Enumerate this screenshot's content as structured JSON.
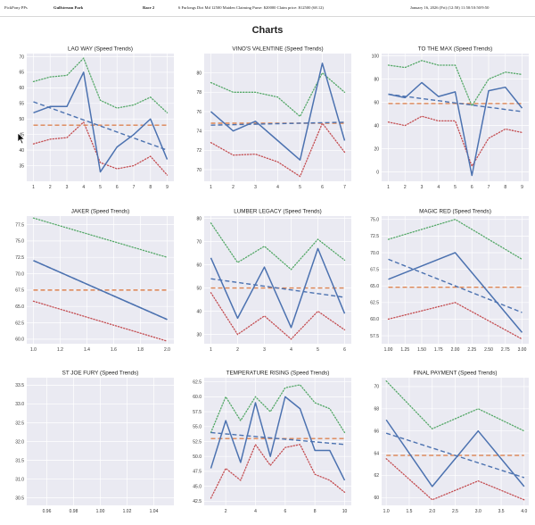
{
  "header": {
    "site": "PickPony PPs",
    "track": "Gulfstream Park",
    "race": "Race 2",
    "conditions": "6 Furlongs Dirt Md 12500 Maiden Claiming Purse: $20000 Claim price: $12500 (68.12)",
    "date": "January 16, 2026 (Fri) (12:50) 11:50/10:50/9:50"
  },
  "page_title": "Charts",
  "colors": {
    "actual": "#4c72b0",
    "trend": "#4c72b0",
    "average": "#dd8452",
    "upper": "#55a868",
    "lower": "#c44e52",
    "plot_bg": "#eaeaf2",
    "grid": "#ffffff"
  },
  "chart_data": [
    {
      "type": "line",
      "title": "LAO WAY (Speed Trends)",
      "x": [
        1,
        2,
        3,
        4,
        5,
        6,
        7,
        8,
        9
      ],
      "xticks": [
        "1",
        "2",
        "3",
        "4",
        "5",
        "6",
        "7",
        "8",
        "9"
      ],
      "xlim": [
        0.6,
        9.4
      ],
      "yticks": [
        "35",
        "40",
        "45",
        "50",
        "55",
        "60",
        "65",
        "70"
      ],
      "ylim": [
        30,
        71
      ],
      "actual": [
        52,
        54,
        54,
        65,
        33,
        41,
        45,
        50,
        37
      ],
      "trend": [
        55.5,
        40
      ],
      "average": 48,
      "upper": [
        62,
        63.5,
        64,
        69.5,
        56,
        53.5,
        54.5,
        57,
        52
      ],
      "lower": [
        42,
        43.5,
        44,
        49,
        36,
        34,
        35,
        38,
        32
      ]
    },
    {
      "type": "line",
      "title": "VINO'S VALENTINE (Speed Trends)",
      "x": [
        1,
        2,
        3,
        4,
        5,
        6,
        7
      ],
      "xticks": [
        "1",
        "2",
        "3",
        "4",
        "5",
        "6",
        "7"
      ],
      "xlim": [
        0.7,
        7.3
      ],
      "yticks": [
        "70",
        "72",
        "74",
        "76",
        "78",
        "80"
      ],
      "ylim": [
        68.8,
        82
      ],
      "actual": [
        76,
        74,
        75,
        73,
        71,
        81,
        73
      ],
      "trend": [
        74.6,
        74.9
      ],
      "average": 74.8,
      "upper": [
        79,
        78,
        78,
        77.5,
        75.5,
        80,
        78
      ],
      "lower": [
        72.8,
        71.5,
        71.6,
        70.8,
        69.3,
        74.8,
        71.8
      ]
    },
    {
      "type": "line",
      "title": "TO THE MAX (Speed Trends)",
      "x": [
        1,
        2,
        3,
        4,
        5,
        6,
        7,
        8,
        9
      ],
      "xticks": [
        "1",
        "2",
        "3",
        "4",
        "5",
        "6",
        "7",
        "8",
        "9"
      ],
      "xlim": [
        0.6,
        9.4
      ],
      "yticks": [
        "0",
        "20",
        "40",
        "60",
        "80",
        "100"
      ],
      "ylim": [
        -8,
        102
      ],
      "actual": [
        67,
        64,
        77,
        65,
        69,
        -3,
        70,
        73,
        55
      ],
      "trend": [
        67,
        52
      ],
      "average": 59,
      "upper": [
        92,
        90,
        96,
        92,
        92,
        57,
        80,
        86,
        84
      ],
      "lower": [
        43,
        40,
        48,
        44,
        44,
        5,
        29,
        37,
        34
      ]
    },
    {
      "type": "line",
      "title": "JAKER (Speed Trends)",
      "x": [
        1,
        2
      ],
      "xticks": [
        "1.0",
        "1.2",
        "1.4",
        "1.6",
        "1.8",
        "2.0"
      ],
      "xlim": [
        0.95,
        2.05
      ],
      "yticks": [
        "60.0",
        "62.5",
        "65.0",
        "67.5",
        "70.0",
        "72.5",
        "75.0",
        "77.5"
      ],
      "ylim": [
        59.3,
        78.8
      ],
      "actual": [
        72,
        63
      ],
      "trend": [
        72,
        63
      ],
      "average": 67.5,
      "upper": [
        78.5,
        72.5
      ],
      "lower": [
        65.8,
        59.7
      ]
    },
    {
      "type": "line",
      "title": "LUMBER LEGACY (Speed Trends)",
      "x": [
        1,
        2,
        3,
        4,
        5,
        6
      ],
      "xticks": [
        "1",
        "2",
        "3",
        "4",
        "5",
        "6"
      ],
      "xlim": [
        0.75,
        6.25
      ],
      "yticks": [
        "30",
        "40",
        "50",
        "60",
        "70",
        "80"
      ],
      "ylim": [
        26,
        81
      ],
      "actual": [
        63,
        37,
        59,
        33,
        67,
        39
      ],
      "trend": [
        54,
        46
      ],
      "average": 50,
      "upper": [
        78,
        61,
        68,
        58,
        71,
        62
      ],
      "lower": [
        48,
        30,
        38,
        28,
        40,
        32
      ]
    },
    {
      "type": "line",
      "title": "MAGIC RED (Speed Trends)",
      "x": [
        1,
        2,
        3
      ],
      "xticks": [
        "1.00",
        "1.25",
        "1.50",
        "1.75",
        "2.00",
        "2.25",
        "2.50",
        "2.75",
        "3.00"
      ],
      "xlim": [
        0.9,
        3.1
      ],
      "yticks": [
        "57.5",
        "60.0",
        "62.5",
        "65.0",
        "67.5",
        "70.0",
        "72.5",
        "75.0"
      ],
      "ylim": [
        56.3,
        75.5
      ],
      "actual": [
        66,
        70,
        58
      ],
      "trend": [
        69,
        61
      ],
      "average": 64.8,
      "upper": [
        72,
        75,
        69
      ],
      "lower": [
        60,
        62.5,
        57
      ]
    },
    {
      "type": "line",
      "title": "ST JOE FURY (Speed Trends)",
      "x": [],
      "xticks": [
        "0.96",
        "0.98",
        "1.00",
        "1.02",
        "1.04"
      ],
      "xlim": [
        0.945,
        1.055
      ],
      "yticks": [
        "30.5",
        "31.0",
        "31.5",
        "32.0",
        "32.5",
        "33.0",
        "33.5"
      ],
      "ylim": [
        30.3,
        33.7
      ],
      "actual": [],
      "trend": [],
      "average": null,
      "upper": [],
      "lower": []
    },
    {
      "type": "line",
      "title": "TEMPERATURE RISING (Speed Trends)",
      "x": [
        1,
        2,
        3,
        4,
        5,
        6,
        7,
        8,
        9,
        10
      ],
      "xticks": [
        "2",
        "4",
        "6",
        "8",
        "10"
      ],
      "xtick_values": [
        2,
        4,
        6,
        8,
        10
      ],
      "xlim": [
        0.55,
        10.45
      ],
      "yticks": [
        "42.5",
        "45.0",
        "47.5",
        "50.0",
        "52.5",
        "55.0",
        "57.5",
        "60.0",
        "62.5"
      ],
      "ylim": [
        41.8,
        63.2
      ],
      "actual": [
        48,
        56,
        49,
        59,
        50,
        60,
        58,
        51,
        51,
        46
      ],
      "trend": [
        54,
        52
      ],
      "average": 53,
      "upper": [
        54,
        60,
        56,
        60,
        57.5,
        61.5,
        62,
        59,
        58,
        54
      ],
      "lower": [
        43,
        48,
        46,
        52,
        48.5,
        51.5,
        52,
        47,
        46,
        44
      ]
    },
    {
      "type": "line",
      "title": "FINAL PAYMENT (Speed Trends)",
      "x": [
        1,
        2,
        3,
        4
      ],
      "xticks": [
        "1.0",
        "1.5",
        "2.0",
        "2.5",
        "3.0",
        "3.5",
        "4.0"
      ],
      "xlim": [
        0.9,
        4.1
      ],
      "yticks": [
        "60",
        "62",
        "64",
        "66",
        "68",
        "70"
      ],
      "ylim": [
        59.3,
        70.8
      ],
      "actual": [
        67,
        61,
        66,
        61
      ],
      "trend": [
        65.8,
        61.8
      ],
      "average": 63.8,
      "upper": [
        70.5,
        66.2,
        68,
        66
      ],
      "lower": [
        63.5,
        59.8,
        61.5,
        59.8
      ]
    }
  ]
}
